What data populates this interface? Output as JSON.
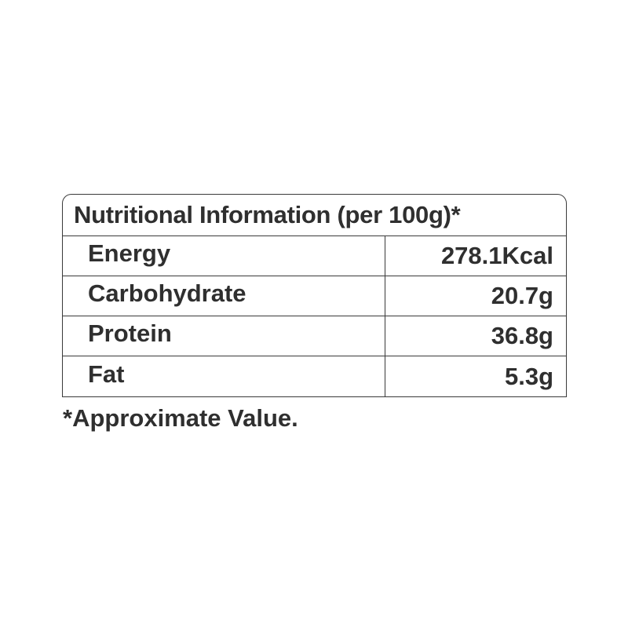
{
  "title": "Nutritional Information (per 100g)*",
  "rows": [
    {
      "label": "Energy",
      "value": "278.1Kcal"
    },
    {
      "label": "Carbohydrate",
      "value": "20.7g"
    },
    {
      "label": "Protein",
      "value": "36.8g"
    },
    {
      "label": "Fat",
      "value": "5.3g"
    }
  ],
  "footnote": "*Approximate Value."
}
